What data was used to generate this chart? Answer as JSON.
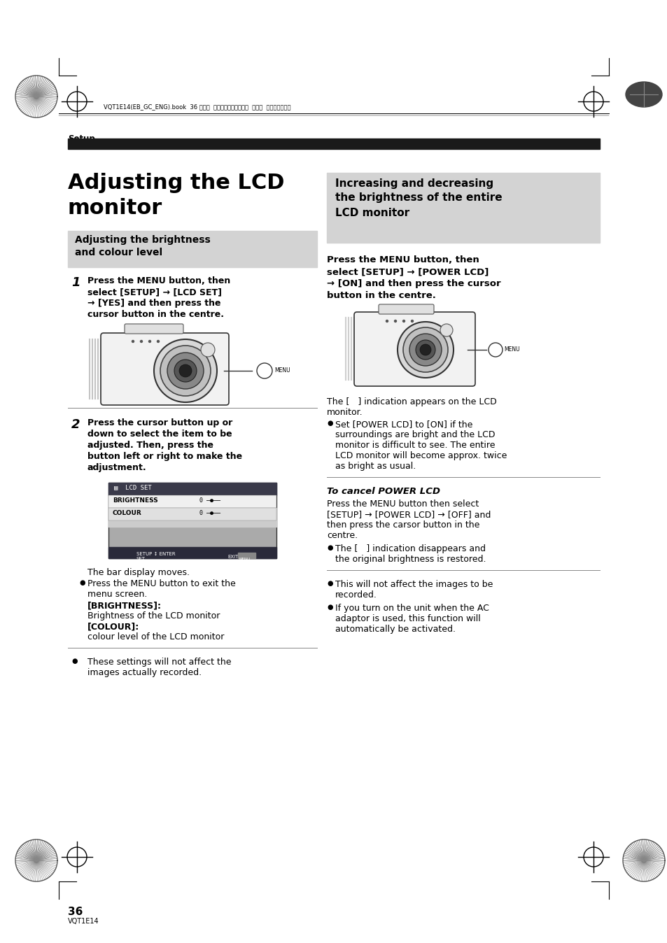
{
  "bg_color": "#ffffff",
  "page_num": "36",
  "page_sub": "VQT1E14",
  "header_text": "VQT1E14(EB_GC_ENG).book  36 ページ  ２００７年２月２８日  水曜日  午後２時２３分",
  "setup_label": "Setup",
  "main_title_line1": "Adjusting the LCD",
  "main_title_line2": "monitor",
  "left_box_title_line1": "Adjusting the brightness",
  "left_box_title_line2": "and colour level",
  "step1_num": "1",
  "step1_line1": "Press the MENU button, then",
  "step1_line2": "select [SETUP] → [LCD SET]",
  "step1_line3": "→ [YES] and then press the",
  "step1_line4": "cursor button in the centre.",
  "step2_num": "2",
  "step2_line1": "Press the cursor button up or",
  "step2_line2": "down to select the item to be",
  "step2_line3": "adjusted. Then, press the",
  "step2_line4": "button left or right to make the",
  "step2_line5": "adjustment.",
  "bar_display": "The bar display moves.",
  "bullet1a": "Press the MENU button to exit the",
  "bullet1b": "menu screen.",
  "brightness_label": "[BRIGHTNESS]:",
  "brightness_text": "Brightness of the LCD monitor",
  "colour_label": "[COLOUR]:",
  "colour_text": "colour level of the LCD monitor",
  "bullet2a": "These settings will not affect the",
  "bullet2b": "images actually recorded.",
  "right_box_line1": "Increasing and decreasing",
  "right_box_line2": "the brightness of the entire",
  "right_box_line3": "LCD monitor",
  "right_step_line1": "Press the MENU button, then",
  "right_step_line2": "select [SETUP] → [POWER LCD]",
  "right_step_line3": "→ [ON] and then press the cursor",
  "right_step_line4": "button in the centre.",
  "lcd_ind_line1": "The [   ] indication appears on the LCD",
  "lcd_ind_line2": "monitor.",
  "power_lcd_b1": "Set [POWER LCD] to [ON] if the",
  "power_lcd_b2": "surroundings are bright and the LCD",
  "power_lcd_b3": "monitor is difficult to see. The entire",
  "power_lcd_b4": "LCD monitor will become approx. twice",
  "power_lcd_b5": "as bright as usual.",
  "cancel_title": "To cancel POWER LCD",
  "cancel_line1": "Press the MENU button then select",
  "cancel_line2": "[SETUP] → [POWER LCD] → [OFF] and",
  "cancel_line3": "then press the carsor button in the",
  "cancel_line4": "centre.",
  "cancel_b1": "The [   ] indication disappears and",
  "cancel_b2": "the original brightness is restored.",
  "bullet3a": "This will not affect the images to be",
  "bullet3b": "recorded.",
  "bullet4a": "If you turn on the unit when the AC",
  "bullet4b": "adaptor is used, this function will",
  "bullet4c": "automatically be activated."
}
